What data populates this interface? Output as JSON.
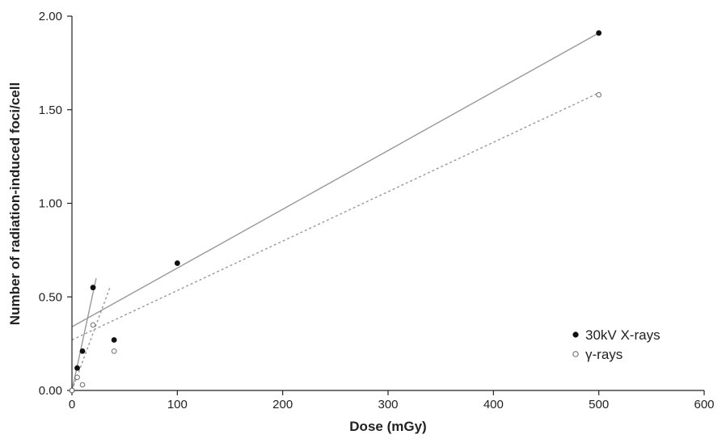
{
  "chart_data": {
    "type": "scatter",
    "xlabel": "Dose (mGy)",
    "ylabel": "Number of radiation-induced foci/cell",
    "xlim": [
      0,
      600
    ],
    "ylim": [
      0,
      2.0
    ],
    "x_ticks": [
      0,
      100,
      200,
      300,
      400,
      500,
      600
    ],
    "x_tick_labels": [
      "0",
      "100",
      "200",
      "300",
      "400",
      "500",
      "600"
    ],
    "y_ticks": [
      0,
      0.5,
      1.0,
      1.5,
      2.0
    ],
    "y_tick_labels": [
      "0.00",
      "0.50",
      "1.00",
      "1.50",
      "2.00"
    ],
    "grid": false,
    "legend_position": "bottom-right",
    "series": [
      {
        "name": "30kV X-rays",
        "marker": "filled-circle",
        "color": "#111111",
        "points": [
          {
            "x": 0,
            "y": 0.0
          },
          {
            "x": 5,
            "y": 0.12
          },
          {
            "x": 10,
            "y": 0.21
          },
          {
            "x": 20,
            "y": 0.55
          },
          {
            "x": 40,
            "y": 0.27
          },
          {
            "x": 100,
            "y": 0.68
          },
          {
            "x": 500,
            "y": 1.91
          }
        ],
        "fits": [
          {
            "style": "solid",
            "color": "#999999",
            "x": [
              0,
              23
            ],
            "y": [
              0.0,
              0.6
            ]
          },
          {
            "style": "solid",
            "color": "#999999",
            "x": [
              0,
              500
            ],
            "y": [
              0.34,
              1.91
            ]
          }
        ]
      },
      {
        "name": "γ-rays",
        "marker": "open-circle",
        "color": "#777777",
        "points": [
          {
            "x": 0,
            "y": 0.0
          },
          {
            "x": 5,
            "y": 0.07
          },
          {
            "x": 10,
            "y": 0.03
          },
          {
            "x": 20,
            "y": 0.35
          },
          {
            "x": 40,
            "y": 0.21
          },
          {
            "x": 500,
            "y": 1.58
          }
        ],
        "fits": [
          {
            "style": "dashed",
            "color": "#999999",
            "x": [
              0,
              36
            ],
            "y": [
              0.0,
              0.55
            ]
          },
          {
            "style": "dashed",
            "color": "#999999",
            "x": [
              0,
              500
            ],
            "y": [
              0.27,
              1.59
            ]
          }
        ]
      }
    ]
  }
}
